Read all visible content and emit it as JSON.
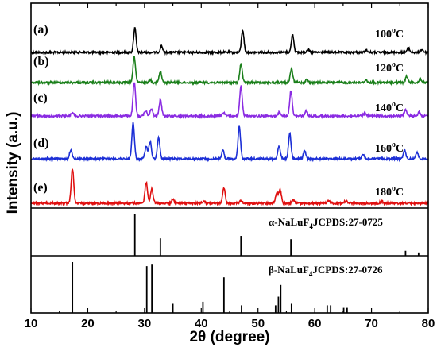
{
  "chart_data": {
    "type": "line",
    "xlabel": "2θ (degree)",
    "ylabel": "Intensity (a.u.)",
    "xlim": [
      10,
      80
    ],
    "x_ticks": [
      10,
      20,
      30,
      40,
      50,
      60,
      70,
      80
    ],
    "series": [
      {
        "label": "(a)",
        "temperature": "100",
        "temp_unit": "oC",
        "color": "#000000",
        "peaks": [
          [
            28.3,
            0.85
          ],
          [
            33.0,
            0.22
          ],
          [
            47.3,
            0.78
          ],
          [
            56.1,
            0.62
          ],
          [
            58.8,
            0.1
          ],
          [
            69.1,
            0.08
          ],
          [
            76.5,
            0.15
          ],
          [
            78.9,
            0.1
          ]
        ]
      },
      {
        "label": "(b)",
        "temperature": "120",
        "temp_unit": "oC",
        "color": "#1a7f1a",
        "peaks": [
          [
            28.2,
            0.95
          ],
          [
            31.0,
            0.1
          ],
          [
            32.8,
            0.4
          ],
          [
            47.0,
            0.7
          ],
          [
            55.9,
            0.5
          ],
          [
            58.6,
            0.12
          ],
          [
            69.0,
            0.1
          ],
          [
            76.2,
            0.22
          ],
          [
            78.6,
            0.12
          ]
        ]
      },
      {
        "label": "(c)",
        "temperature": "140",
        "temp_unit": "oC",
        "color": "#8a2be2",
        "peaks": [
          [
            17.3,
            0.12
          ],
          [
            28.2,
            1.0
          ],
          [
            30.2,
            0.16
          ],
          [
            31.2,
            0.22
          ],
          [
            32.8,
            0.48
          ],
          [
            43.9,
            0.1
          ],
          [
            47.0,
            0.9
          ],
          [
            53.8,
            0.12
          ],
          [
            55.8,
            0.75
          ],
          [
            58.5,
            0.15
          ],
          [
            68.8,
            0.08
          ],
          [
            76.0,
            0.18
          ],
          [
            78.4,
            0.12
          ]
        ]
      },
      {
        "label": "(d)",
        "temperature": "160",
        "temp_unit": "oC",
        "color": "#1c2fd6",
        "peaks": [
          [
            17.0,
            0.2
          ],
          [
            28.0,
            0.85
          ],
          [
            30.3,
            0.3
          ],
          [
            31.0,
            0.4
          ],
          [
            32.5,
            0.5
          ],
          [
            43.8,
            0.2
          ],
          [
            46.7,
            0.75
          ],
          [
            53.7,
            0.3
          ],
          [
            55.6,
            0.6
          ],
          [
            58.2,
            0.18
          ],
          [
            68.5,
            0.1
          ],
          [
            75.8,
            0.2
          ],
          [
            78.0,
            0.15
          ]
        ]
      },
      {
        "label": "(e)",
        "temperature": "180",
        "temp_unit": "oC",
        "color": "#e01010",
        "peaks": [
          [
            17.3,
            1.0
          ],
          [
            30.3,
            0.6
          ],
          [
            31.3,
            0.4
          ],
          [
            35.0,
            0.12
          ],
          [
            40.4,
            0.06
          ],
          [
            44.0,
            0.45
          ],
          [
            47.0,
            0.08
          ],
          [
            53.3,
            0.3
          ],
          [
            53.9,
            0.38
          ],
          [
            56.2,
            0.1
          ],
          [
            62.5,
            0.08
          ],
          [
            65.5,
            0.07
          ],
          [
            71.8,
            0.06
          ]
        ]
      }
    ],
    "references": [
      {
        "label_prefix": "α-NaLuF",
        "label_sub": "4",
        "label_suffix": "JCPDS:27-0725",
        "lines": [
          [
            28.3,
            1.0
          ],
          [
            32.8,
            0.42
          ],
          [
            47.0,
            0.48
          ],
          [
            55.8,
            0.4
          ],
          [
            76.0,
            0.12
          ],
          [
            78.3,
            0.08
          ]
        ]
      },
      {
        "label_prefix": "β-NaLuF",
        "label_sub": "4",
        "label_suffix": "JCPDS:27-0726",
        "lines": [
          [
            17.3,
            1.0
          ],
          [
            30.4,
            0.92
          ],
          [
            31.3,
            0.95
          ],
          [
            35.0,
            0.18
          ],
          [
            40.3,
            0.22
          ],
          [
            44.0,
            0.7
          ],
          [
            47.1,
            0.15
          ],
          [
            53.1,
            0.15
          ],
          [
            53.6,
            0.32
          ],
          [
            54.0,
            0.55
          ],
          [
            55.9,
            0.18
          ],
          [
            62.2,
            0.15
          ],
          [
            62.8,
            0.15
          ],
          [
            65.1,
            0.1
          ],
          [
            65.7,
            0.1
          ]
        ]
      }
    ]
  }
}
